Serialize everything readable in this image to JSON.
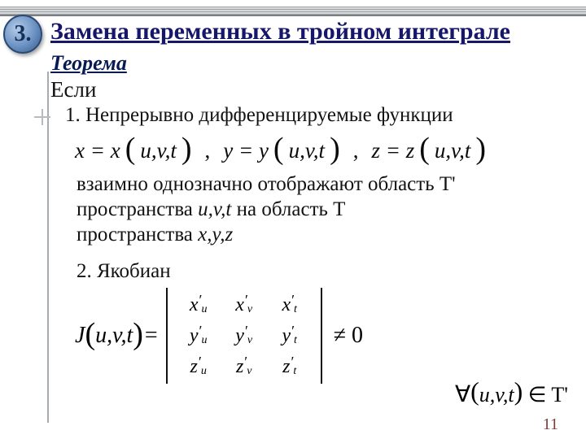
{
  "badge": {
    "number": "3."
  },
  "title": "Замена переменных в тройном интеграле",
  "theorem_label": "Теорема",
  "if_label": "Если",
  "item1": "1. Непрерывно дифференцируемые функции",
  "eqs": {
    "x": "x = x",
    "x_args": "u,v,t",
    "y": "y = y",
    "y_args": "u,v,t",
    "z": "z = z",
    "z_args": "u,v,t"
  },
  "map_text_l1": "взаимно однозначно отображают область T'",
  "map_text_l2_a": "пространства ",
  "map_text_l2_vars": "u,v,t",
  "map_text_l2_b": "  на область T",
  "map_text_l3_a": "пространства ",
  "map_text_l3_vars": "x,y,z",
  "item2": "2. Якобиан",
  "jac": {
    "J": "J",
    "args": "u,v,t",
    "cells": [
      [
        "x",
        "u"
      ],
      [
        "x",
        "v"
      ],
      [
        "x",
        "t"
      ],
      [
        "y",
        "u"
      ],
      [
        "y",
        "v"
      ],
      [
        "y",
        "t"
      ],
      [
        "z",
        "u"
      ],
      [
        "z",
        "v"
      ],
      [
        "z",
        "t"
      ]
    ],
    "neq": "≠ 0"
  },
  "forall": {
    "sym": "∀",
    "args": "u,v,t",
    "in": "∈ T'"
  },
  "page_number": "11",
  "colors": {
    "title": "#16166a",
    "theorem": "#071a52",
    "pagenum": "#7a3b3b"
  }
}
